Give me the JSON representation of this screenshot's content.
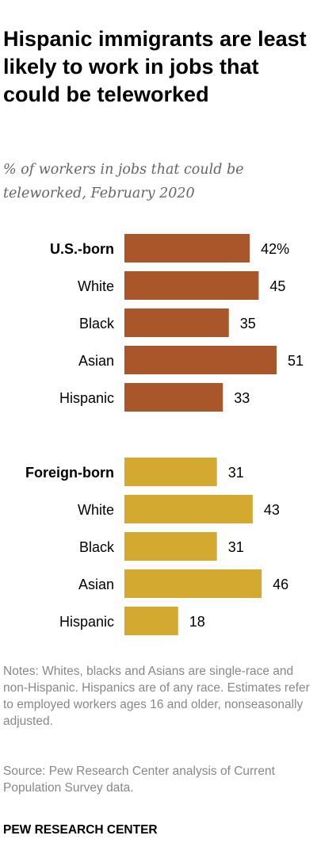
{
  "chart_data": {
    "type": "bar",
    "orientation": "horizontal",
    "title": "Hispanic immigrants are least likely to work in jobs that could be teleworked",
    "subtitle": "% of workers in jobs that could be teleworked, February 2020",
    "xlim": [
      0,
      51
    ],
    "grid": false,
    "groups": [
      {
        "name": "U.S.-born",
        "color": "#a9572a",
        "categories": [
          "U.S.-born",
          "White",
          "Black",
          "Asian",
          "Hispanic"
        ],
        "values": [
          42,
          45,
          35,
          51,
          33
        ],
        "value_labels": [
          "42%",
          "45",
          "35",
          "51",
          "33"
        ]
      },
      {
        "name": "Foreign-born",
        "color": "#d3a930",
        "categories": [
          "Foreign-born",
          "White",
          "Black",
          "Asian",
          "Hispanic"
        ],
        "values": [
          31,
          43,
          31,
          46,
          18
        ],
        "value_labels": [
          "31",
          "43",
          "31",
          "46",
          "18"
        ]
      }
    ]
  },
  "notes": "Notes: Whites, blacks and Asians are single-race and non-Hispanic. Hispanics are of any race. Estimates refer to employed workers ages 16 and older, nonseasonally adjusted.",
  "source": "Source: Pew Research Center analysis of Current Population Survey data.",
  "brand": "PEW RESEARCH CENTER"
}
